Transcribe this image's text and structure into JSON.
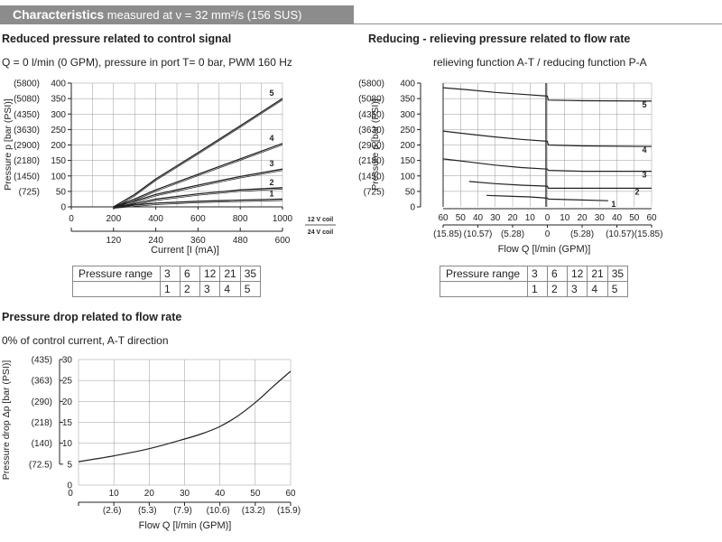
{
  "header": {
    "title_bold": "Characteristics",
    "title_rest": " measured at ν = 32 mm²/s (156 SUS)"
  },
  "charts": {
    "c1": {
      "heading": "Reduced pressure related to control signal",
      "subtitle": "Q = 0 l/min (0 GPM), pressure in port T= 0 bar, PWM 160 Hz"
    },
    "c2": {
      "heading": "Reducing - relieving pressure related to flow rate",
      "subtitle": "relieving function A-T  /  reducing function P-A"
    },
    "c3": {
      "heading": "Pressure drop related to flow rate",
      "subtitle": "0% of control current, A-T direction"
    }
  },
  "tables": {
    "t1": {
      "label": "Pressure range",
      "top": [
        "3",
        "6",
        "12",
        "21",
        "35"
      ],
      "bottom": [
        "1",
        "2",
        "3",
        "4",
        "5"
      ]
    },
    "t2": {
      "label": "Pressure range",
      "top": [
        "3",
        "6",
        "12",
        "21",
        "35"
      ],
      "bottom": [
        "1",
        "2",
        "3",
        "4",
        "5"
      ]
    }
  },
  "chart_data": [
    {
      "type": "line",
      "title": "Reduced pressure related to control signal",
      "ylabel": "Pressure p [bar (PSI)]",
      "xlabel": "Current [I (mA)]",
      "ylim": [
        0,
        400
      ],
      "xlim": [
        0,
        1000
      ],
      "y_ticks": [
        "0",
        "50",
        "100",
        "150",
        "200",
        "250",
        "300",
        "350",
        "400"
      ],
      "y_psi_ticks": [
        "(725)",
        "(1450)",
        "(2180)",
        "(2900)",
        "(3630)",
        "(4350)",
        "(5080)",
        "(5800)"
      ],
      "x_ticks_12v": [
        "0",
        "200",
        "400",
        "600",
        "800",
        "1000"
      ],
      "x_ticks_24v": [
        "120",
        "240",
        "360",
        "480",
        "600"
      ],
      "axis_label_12v": "12 V coil",
      "axis_label_24v": "24 V coil",
      "grid": true,
      "series": [
        {
          "name": "1",
          "x": [
            200,
            280,
            400,
            600,
            800,
            1000
          ],
          "y": [
            0,
            5,
            12,
            18,
            22,
            25
          ]
        },
        {
          "name": "2",
          "x": [
            200,
            300,
            400,
            600,
            800,
            1000
          ],
          "y": [
            0,
            10,
            25,
            42,
            55,
            62
          ]
        },
        {
          "name": "3",
          "x": [
            200,
            300,
            400,
            600,
            800,
            1000
          ],
          "y": [
            0,
            18,
            40,
            70,
            98,
            122
          ]
        },
        {
          "name": "4",
          "x": [
            200,
            300,
            400,
            600,
            800,
            1000
          ],
          "y": [
            0,
            25,
            55,
            105,
            155,
            205
          ]
        },
        {
          "name": "5",
          "x": [
            200,
            300,
            400,
            600,
            800,
            1000
          ],
          "y": [
            0,
            40,
            90,
            175,
            262,
            350
          ]
        }
      ]
    },
    {
      "type": "line",
      "title": "Reducing - relieving pressure related to flow rate",
      "ylabel": "Pressure p [bar (PSI)]",
      "xlabel": "Flow Q [l/min (GPM)]",
      "ylim": [
        0,
        400
      ],
      "xlim": [
        -60,
        60
      ],
      "y_ticks": [
        "0",
        "50",
        "100",
        "150",
        "200",
        "250",
        "300",
        "350",
        "400"
      ],
      "y_psi_ticks": [
        "(725)",
        "(1450)",
        "(2180)",
        "(2900)",
        "(3630)",
        "(4350)",
        "(5080)",
        "(5800)"
      ],
      "x_ticks_lpm": [
        "60",
        "50",
        "40",
        "30",
        "20",
        "10",
        "0",
        "10",
        "20",
        "30",
        "40",
        "50",
        "60"
      ],
      "x_ticks_gpm": [
        "(15.85)",
        "(10.57)",
        "(5.28)",
        "0",
        "(5.28)",
        "(10.57)(15.85)"
      ],
      "grid": true,
      "series": [
        {
          "name": "1",
          "x": [
            -35,
            -20,
            -10,
            0,
            0.5,
            15,
            35
          ],
          "y": [
            37,
            34,
            32,
            28,
            25,
            23,
            20
          ]
        },
        {
          "name": "2",
          "x": [
            -45,
            -30,
            -15,
            0,
            0.5,
            20,
            60
          ],
          "y": [
            82,
            75,
            70,
            67,
            60,
            60,
            60
          ]
        },
        {
          "name": "3",
          "x": [
            -60,
            -45,
            -30,
            -15,
            0,
            0.5,
            20,
            60
          ],
          "y": [
            155,
            145,
            135,
            127,
            122,
            118,
            115,
            115
          ]
        },
        {
          "name": "4",
          "x": [
            -60,
            -45,
            -30,
            -15,
            0,
            0.5,
            20,
            60
          ],
          "y": [
            245,
            235,
            226,
            218,
            212,
            200,
            197,
            195
          ]
        },
        {
          "name": "5",
          "x": [
            -60,
            -45,
            -30,
            -15,
            0,
            0.5,
            20,
            60
          ],
          "y": [
            385,
            378,
            370,
            364,
            358,
            345,
            343,
            342
          ]
        }
      ]
    },
    {
      "type": "line",
      "title": "Pressure drop related to flow rate",
      "ylabel": "Pressure drop Δp [bar (PSI)]",
      "xlabel": "Flow Q [l/min (GPM)]",
      "ylim": [
        0,
        30
      ],
      "xlim": [
        0,
        60
      ],
      "y_ticks": [
        "0",
        "5",
        "10",
        "15",
        "20",
        "25",
        "30"
      ],
      "y_psi_ticks": [
        "(72.5)",
        "(140)",
        "(218)",
        "(290)",
        "(363)",
        "(435)"
      ],
      "x_ticks_lpm": [
        "0",
        "10",
        "20",
        "30",
        "40",
        "50",
        "60"
      ],
      "x_ticks_gpm": [
        "(2.6)",
        "(5.3)",
        "(7.9)",
        "(10.6)",
        "(13.2)",
        "(15.9)"
      ],
      "grid": true,
      "series": [
        {
          "name": "",
          "x": [
            0,
            10,
            20,
            30,
            35,
            40,
            45,
            50,
            55,
            60
          ],
          "y": [
            5.6,
            7.0,
            8.7,
            11.0,
            12.3,
            14.0,
            16.5,
            19.7,
            23.5,
            27.2
          ]
        }
      ]
    }
  ]
}
